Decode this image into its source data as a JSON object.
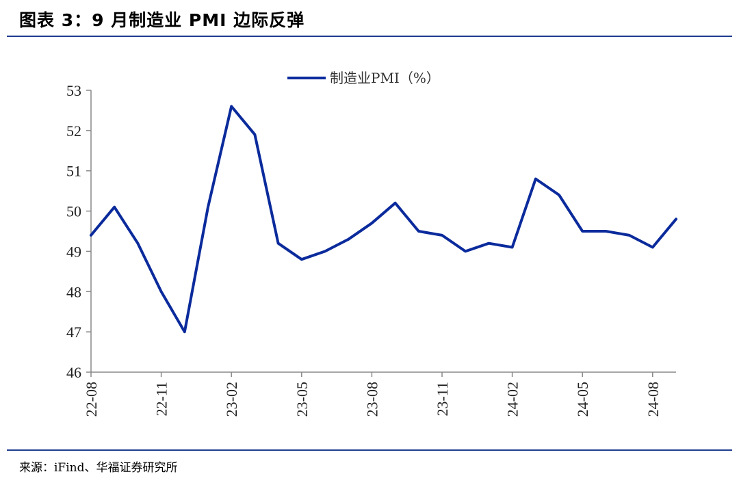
{
  "header": {
    "title": "图表 3：9 月制造业 PMI 边际反弹"
  },
  "footer": {
    "source": "来源：iFind、华福证券研究所"
  },
  "chart_data": {
    "type": "line",
    "title": "",
    "xlabel": "",
    "ylabel": "",
    "ylim": [
      46,
      53
    ],
    "yticks": [
      46,
      47,
      48,
      49,
      50,
      51,
      52,
      53
    ],
    "x": [
      "22-08",
      "22-09",
      "22-10",
      "22-11",
      "22-12",
      "23-01",
      "23-02",
      "23-03",
      "23-04",
      "23-05",
      "23-06",
      "23-07",
      "23-08",
      "23-09",
      "23-10",
      "23-11",
      "23-12",
      "24-01",
      "24-02",
      "24-03",
      "24-04",
      "24-05",
      "24-06",
      "24-07",
      "24-08",
      "24-09"
    ],
    "xtick_labels": [
      "22-08",
      "22-11",
      "23-02",
      "23-05",
      "23-08",
      "23-11",
      "24-02",
      "24-05",
      "24-08"
    ],
    "series": [
      {
        "name": "制造业PMI（%）",
        "color": "#0b2b9c",
        "values": [
          49.4,
          50.1,
          49.2,
          48.0,
          47.0,
          50.1,
          52.6,
          51.9,
          49.2,
          48.8,
          49.0,
          49.3,
          49.7,
          50.2,
          49.5,
          49.4,
          49.0,
          49.2,
          49.1,
          50.8,
          50.4,
          49.5,
          49.5,
          49.4,
          49.1,
          49.8
        ]
      }
    ],
    "legend_position": "top-center",
    "grid": false
  }
}
